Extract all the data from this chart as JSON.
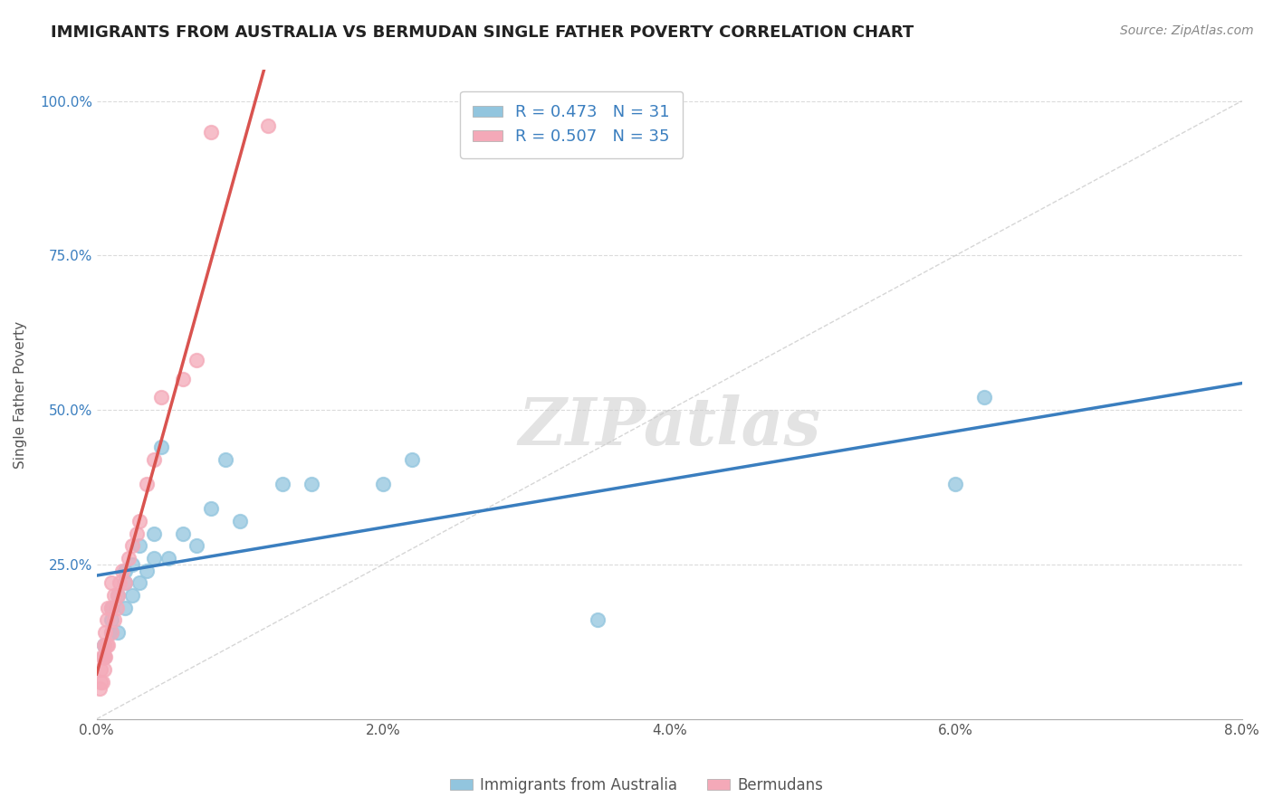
{
  "title": "IMMIGRANTS FROM AUSTRALIA VS BERMUDAN SINGLE FATHER POVERTY CORRELATION CHART",
  "source_text": "Source: ZipAtlas.com",
  "xlabel_australia": "Immigrants from Australia",
  "xlabel_bermudans": "Bermudans",
  "ylabel": "Single Father Poverty",
  "xlim": [
    0.0,
    0.08
  ],
  "ylim": [
    0.0,
    1.05
  ],
  "xticks": [
    0.0,
    0.02,
    0.04,
    0.06,
    0.08
  ],
  "xtick_labels": [
    "0.0%",
    "2.0%",
    "4.0%",
    "6.0%",
    "8.0%"
  ],
  "yticks": [
    0.25,
    0.5,
    0.75,
    1.0
  ],
  "ytick_labels": [
    "25.0%",
    "50.0%",
    "75.0%",
    "100.0%"
  ],
  "R_australia": 0.473,
  "N_australia": 31,
  "R_bermudans": 0.507,
  "N_bermudans": 35,
  "color_australia": "#92c5de",
  "color_bermudans": "#f4a9b8",
  "trend_color_australia": "#3a7ebf",
  "trend_color_bermudans": "#d9534f",
  "watermark": "ZIPatlas",
  "australia_x": [
    0.0005,
    0.0005,
    0.001,
    0.001,
    0.001,
    0.0015,
    0.0015,
    0.002,
    0.002,
    0.002,
    0.0025,
    0.0025,
    0.003,
    0.003,
    0.0035,
    0.004,
    0.004,
    0.0045,
    0.005,
    0.006,
    0.007,
    0.008,
    0.009,
    0.01,
    0.013,
    0.015,
    0.02,
    0.022,
    0.035,
    0.06,
    0.062
  ],
  "australia_y": [
    0.1,
    0.12,
    0.14,
    0.16,
    0.18,
    0.14,
    0.2,
    0.18,
    0.22,
    0.24,
    0.2,
    0.25,
    0.22,
    0.28,
    0.24,
    0.26,
    0.3,
    0.44,
    0.26,
    0.3,
    0.28,
    0.34,
    0.42,
    0.32,
    0.38,
    0.38,
    0.38,
    0.42,
    0.16,
    0.38,
    0.52
  ],
  "bermudans_x": [
    0.0002,
    0.0003,
    0.0003,
    0.0004,
    0.0004,
    0.0005,
    0.0005,
    0.0005,
    0.0006,
    0.0006,
    0.0007,
    0.0007,
    0.0008,
    0.0008,
    0.001,
    0.001,
    0.001,
    0.0012,
    0.0012,
    0.0014,
    0.0015,
    0.0016,
    0.0018,
    0.002,
    0.0022,
    0.0025,
    0.0028,
    0.003,
    0.0035,
    0.004,
    0.0045,
    0.006,
    0.007,
    0.008,
    0.012
  ],
  "bermudans_y": [
    0.05,
    0.06,
    0.08,
    0.06,
    0.1,
    0.08,
    0.1,
    0.12,
    0.1,
    0.14,
    0.12,
    0.16,
    0.12,
    0.18,
    0.14,
    0.18,
    0.22,
    0.16,
    0.2,
    0.18,
    0.2,
    0.22,
    0.24,
    0.22,
    0.26,
    0.28,
    0.3,
    0.32,
    0.38,
    0.42,
    0.52,
    0.55,
    0.58,
    0.95,
    0.96
  ],
  "background_color": "#ffffff",
  "grid_color": "#cccccc"
}
